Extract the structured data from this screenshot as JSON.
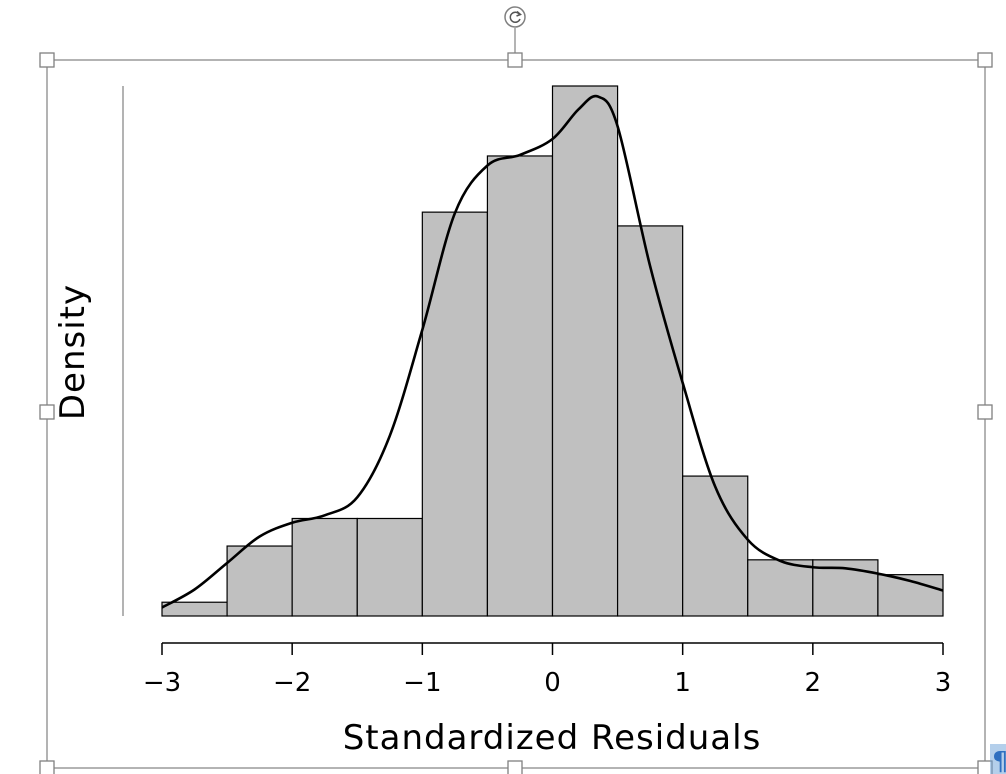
{
  "colors": {
    "bar_fill": "#c0c0c0",
    "bar_stroke": "#000000",
    "curve": "#000000",
    "frame": "#9a9a9a",
    "handle_fill": "#ffffff",
    "handle_stroke": "#808080"
  },
  "icons": {
    "rotate": "rotate-handle-icon",
    "paragraph": "paragraph-mark-icon"
  },
  "chart_data": {
    "type": "bar",
    "title": "",
    "xlabel": "Standardized Residuals",
    "ylabel": "Density",
    "xlim": [
      -3,
      3
    ],
    "ylim": [
      0,
      0.5
    ],
    "xticks": [
      -3,
      -2,
      -1,
      0,
      1,
      2,
      3
    ],
    "xtick_labels": [
      "−3",
      "−2",
      "−1",
      "0",
      "1",
      "2",
      "3"
    ],
    "y_axis_ticks_shown": false,
    "bins": [
      {
        "x0": -3.0,
        "x1": -2.5,
        "value": 0.013
      },
      {
        "x0": -2.5,
        "x1": -2.0,
        "value": 0.066
      },
      {
        "x0": -2.0,
        "x1": -1.5,
        "value": 0.092
      },
      {
        "x0": -1.5,
        "x1": -1.0,
        "value": 0.092
      },
      {
        "x0": -1.0,
        "x1": -0.5,
        "value": 0.381
      },
      {
        "x0": -0.5,
        "x1": 0.0,
        "value": 0.434
      },
      {
        "x0": 0.0,
        "x1": 0.5,
        "value": 0.5
      },
      {
        "x0": 0.5,
        "x1": 1.0,
        "value": 0.368
      },
      {
        "x0": 1.0,
        "x1": 1.5,
        "value": 0.132
      },
      {
        "x0": 1.5,
        "x1": 2.0,
        "value": 0.053
      },
      {
        "x0": 2.0,
        "x1": 2.5,
        "value": 0.053
      },
      {
        "x0": 2.5,
        "x1": 3.0,
        "value": 0.039
      }
    ],
    "density_curve": {
      "x": [
        -3.0,
        -2.75,
        -2.5,
        -2.25,
        -2.0,
        -1.75,
        -1.5,
        -1.25,
        -1.0,
        -0.75,
        -0.5,
        -0.25,
        0.0,
        0.2,
        0.35,
        0.5,
        0.75,
        1.0,
        1.25,
        1.5,
        1.75,
        2.0,
        2.25,
        2.5,
        2.75,
        3.0
      ],
      "y": [
        0.008,
        0.025,
        0.05,
        0.075,
        0.088,
        0.095,
        0.112,
        0.17,
        0.27,
        0.38,
        0.425,
        0.435,
        0.45,
        0.478,
        0.49,
        0.462,
        0.33,
        0.22,
        0.122,
        0.072,
        0.052,
        0.046,
        0.045,
        0.04,
        0.033,
        0.024
      ]
    }
  }
}
